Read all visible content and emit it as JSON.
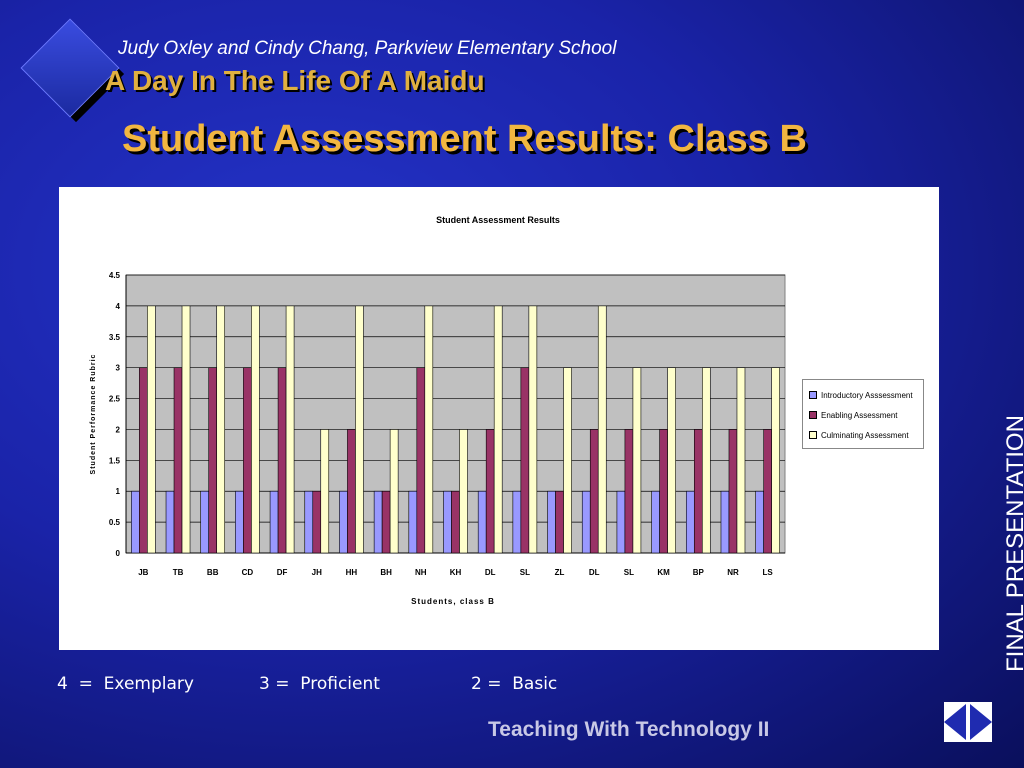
{
  "header": {
    "author": "Judy Oxley and Cindy Chang, Parkview Elementary School",
    "subtitle": "A Day In The Life Of A Maidu",
    "title": "Student Assessment Results:  Class B"
  },
  "side_label": "FINAL PRESENTATION",
  "scale_notes": [
    "4  =  Exemplary",
    "3 =  Proficient",
    "2 =  Basic"
  ],
  "footer": "Teaching With Technology II",
  "nav": {
    "prev_icon": "triangle-left-icon",
    "next_icon": "triangle-right-icon"
  },
  "colors": {
    "introductory": "#9999ff",
    "enabling": "#993366",
    "culminating": "#ffffcc",
    "plot_bg": "#c0c0c0"
  },
  "chart_data": {
    "type": "bar",
    "title": "Student Assessment Results",
    "xlabel": "Students, class B",
    "ylabel": "Student Performance Rubric",
    "ylim": [
      0,
      4.5
    ],
    "yticks": [
      "0",
      "0.5",
      "1",
      "1.5",
      "2",
      "2.5",
      "3",
      "3.5",
      "4",
      "4.5"
    ],
    "grid": true,
    "legend_position": "right",
    "categories": [
      "JB",
      "TB",
      "BB",
      "CD",
      "DF",
      "JH",
      "HH",
      "BH",
      "NH",
      "KH",
      "DL",
      "SL",
      "ZL",
      "DL",
      "SL",
      "KM",
      "BP",
      "NR",
      "LS"
    ],
    "series": [
      {
        "name": "Introductory Asssessment",
        "values": [
          1,
          1,
          1,
          1,
          1,
          1,
          1,
          1,
          1,
          1,
          1,
          1,
          1,
          1,
          1,
          1,
          1,
          1,
          1
        ]
      },
      {
        "name": "Enabling Assessment",
        "values": [
          3,
          3,
          3,
          3,
          3,
          1,
          2,
          1,
          3,
          1,
          2,
          3,
          1,
          2,
          2,
          2,
          2,
          2,
          2
        ]
      },
      {
        "name": "Culminating Assessment",
        "values": [
          4,
          4,
          4,
          4,
          4,
          2,
          4,
          2,
          4,
          2,
          4,
          4,
          3,
          4,
          3,
          3,
          3,
          3,
          3
        ]
      }
    ]
  }
}
